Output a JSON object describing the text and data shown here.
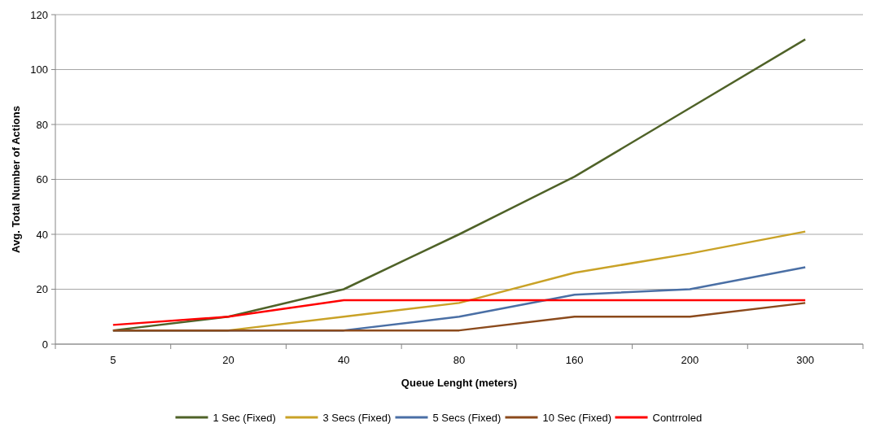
{
  "chart_data": {
    "type": "line",
    "xlabel": "Queue Lenght (meters)",
    "ylabel": "Avg. Total Number of Actions",
    "categories": [
      "5",
      "20",
      "40",
      "80",
      "160",
      "200",
      "300"
    ],
    "series": [
      {
        "name": "1 Sec (Fixed)",
        "color": "#4f6228",
        "values": [
          5,
          10,
          20,
          40,
          61,
          86,
          111
        ]
      },
      {
        "name": "3 Secs (Fixed)",
        "color": "#c9a227",
        "values": [
          5,
          5,
          10,
          15,
          26,
          33,
          41
        ]
      },
      {
        "name": "5 Secs (Fixed)",
        "color": "#4a6fa5",
        "values": [
          5,
          5,
          5,
          10,
          18,
          20,
          28
        ]
      },
      {
        "name": "10 Sec (Fixed)",
        "color": "#8b4a1c",
        "values": [
          5,
          5,
          5,
          5,
          10,
          10,
          15
        ]
      },
      {
        "name": "Contrroled",
        "color": "#ff0000",
        "values": [
          7,
          10,
          16,
          16,
          16,
          16,
          16
        ]
      }
    ],
    "ylim": [
      0,
      120
    ],
    "yticks": [
      0,
      20,
      40,
      60,
      80,
      100,
      120
    ],
    "grid": "y",
    "legend": "bottom",
    "marker": "none",
    "line_style": "solid"
  }
}
